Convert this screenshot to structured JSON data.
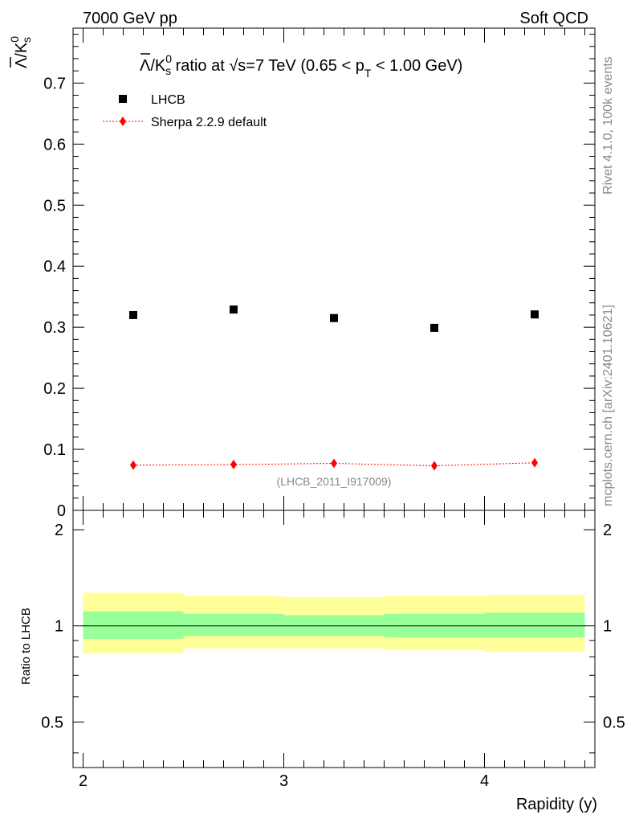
{
  "header": {
    "left": "7000 GeV pp",
    "right": "Soft QCD",
    "side_top": "Rivet 4.1.0,  100k events",
    "side_bottom": "mcplots.cern.ch [arXiv:2401.10621]"
  },
  "colors": {
    "data": "#000000",
    "mc": "#ff0000",
    "band_inner": "#99ff99",
    "band_outer": "#ffff99"
  },
  "chart_data": [
    {
      "type": "scatter",
      "title_parts": {
        "lambda_bar": "Λ",
        "k": "/K",
        "k_sup": "0",
        "k_sub": "s",
        "rest": " ratio at √s=7 TeV (0.65 < p",
        "pt_sub": "T",
        "end": " < 1.00 GeV)"
      },
      "ylabel_parts": {
        "lambda": "Λ",
        "k": "/K",
        "sup": "0",
        "sub": "s"
      },
      "watermark": "(LHCB_2011_I917009)",
      "xlim": [
        1.95,
        4.55
      ],
      "ylim": [
        0,
        0.79
      ],
      "yticks": [
        0,
        0.1,
        0.2,
        0.3,
        0.4,
        0.5,
        0.6,
        0.7
      ],
      "ytick_labels": [
        "0",
        "0.1",
        "0.2",
        "0.3",
        "0.4",
        "0.5",
        "0.6",
        "0.7"
      ],
      "legend_position": "top-left",
      "series": [
        {
          "name": "LHCB",
          "marker": "square",
          "x": [
            2.25,
            2.75,
            3.25,
            3.75,
            4.25
          ],
          "y": [
            0.32,
            0.329,
            0.315,
            0.299,
            0.321
          ]
        },
        {
          "name": "Sherpa 2.2.9 default",
          "marker": "diamond",
          "line": "dotted",
          "x": [
            2.25,
            2.75,
            3.25,
            3.75,
            4.25
          ],
          "y": [
            0.074,
            0.075,
            0.077,
            0.073,
            0.078
          ]
        }
      ]
    },
    {
      "type": "area",
      "ylabel": "Ratio to LHCB",
      "xlabel": "Rapidity (y)",
      "xlim": [
        1.95,
        4.55
      ],
      "ylim": [
        0.36,
        2.3
      ],
      "yscale": "log",
      "xticks": [
        2,
        3,
        4
      ],
      "xtick_labels": [
        "2",
        "3",
        "4"
      ],
      "yticks": [
        0.5,
        1,
        2
      ],
      "ytick_labels": [
        "0.5",
        "1",
        "2"
      ],
      "reference_line": 1,
      "bins": [
        [
          2.0,
          2.5
        ],
        [
          2.5,
          3.0
        ],
        [
          3.0,
          3.5
        ],
        [
          3.5,
          4.0
        ],
        [
          4.0,
          4.5
        ]
      ],
      "inner_band": [
        [
          0.91,
          1.11
        ],
        [
          0.93,
          1.09
        ],
        [
          0.93,
          1.08
        ],
        [
          0.92,
          1.09
        ],
        [
          0.92,
          1.1
        ]
      ],
      "outer_band": [
        [
          0.82,
          1.27
        ],
        [
          0.85,
          1.24
        ],
        [
          0.85,
          1.23
        ],
        [
          0.84,
          1.24
        ],
        [
          0.83,
          1.25
        ]
      ]
    }
  ]
}
